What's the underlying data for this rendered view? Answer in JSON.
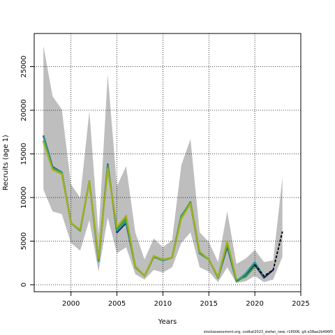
{
  "chart_data": {
    "type": "line",
    "title": "",
    "xlabel": "Years",
    "ylabel": "Recruits (age 1)",
    "xlim": [
      1996,
      2025
    ],
    "ylim": [
      -800,
      28800
    ],
    "x_ticks": [
      "2000",
      "2005",
      "2010",
      "2015",
      "2020",
      "2025"
    ],
    "y_ticks": [
      "0",
      "5000",
      "10000",
      "15000",
      "20000",
      "25000"
    ],
    "grid": true,
    "legend": "none",
    "footer_text": "stockassessment.org, codkat2023_stefan_new, r16006, git:e38ae2b496f0",
    "colors": {
      "band": "#bebebe",
      "series": [
        "#1a2a6c",
        "#2e9e8f",
        "#3aa040",
        "#a0b020",
        "#0a0a0a"
      ]
    },
    "x": [
      1997,
      1998,
      1999,
      2000,
      2001,
      2002,
      2003,
      2004,
      2005,
      2006,
      2007,
      2008,
      2009,
      2010,
      2011,
      2012,
      2013,
      2014,
      2015,
      2016,
      2017,
      2018,
      2019,
      2020,
      2021,
      2022,
      2023
    ],
    "band": {
      "upper": [
        27400,
        21600,
        20100,
        11500,
        10000,
        19900,
        5800,
        24100,
        11300,
        13600,
        6000,
        2900,
        5300,
        4300,
        5100,
        13700,
        16700,
        6000,
        4900,
        2600,
        8400,
        2400,
        3000,
        4000,
        2600,
        2800,
        12300
      ],
      "lower": [
        10900,
        8400,
        8100,
        4800,
        3900,
        7400,
        1500,
        7700,
        3600,
        4300,
        1200,
        600,
        1700,
        1400,
        2000,
        4800,
        6000,
        2000,
        1500,
        300,
        2000,
        200,
        400,
        1000,
        300,
        600,
        3200
      ]
    },
    "series": [
      {
        "values": [
          17100,
          13500,
          12900,
          7100,
          6200,
          11900,
          2700,
          13800,
          6000,
          7100,
          2100,
          1000,
          3200,
          2800,
          3100,
          7900,
          9300,
          3600,
          2900,
          800,
          4400,
          400,
          1000,
          2300,
          800,
          1700,
          null
        ]
      },
      {
        "values": [
          17000,
          13400,
          12900,
          7100,
          6200,
          11900,
          2700,
          13700,
          6200,
          7300,
          2100,
          1000,
          3200,
          2800,
          3100,
          7900,
          9400,
          3600,
          2900,
          800,
          4600,
          400,
          1300,
          2600,
          900,
          null,
          null
        ]
      },
      {
        "values": [
          16500,
          13300,
          12800,
          7100,
          6200,
          11900,
          2900,
          13500,
          6400,
          7600,
          2000,
          1000,
          3200,
          2900,
          3100,
          7800,
          9500,
          3700,
          2900,
          800,
          4800,
          500,
          900,
          2100,
          null,
          null,
          null
        ]
      },
      {
        "values": [
          16400,
          13200,
          12700,
          7100,
          6300,
          11900,
          3000,
          13300,
          6600,
          7900,
          2100,
          1000,
          3300,
          2900,
          3100,
          7600,
          9300,
          3800,
          2900,
          900,
          5000,
          600,
          null,
          null,
          null,
          null,
          null
        ]
      },
      {
        "values": [
          null,
          null,
          null,
          null,
          null,
          null,
          null,
          null,
          null,
          null,
          null,
          null,
          null,
          null,
          null,
          null,
          null,
          null,
          null,
          null,
          null,
          null,
          null,
          2300,
          1000,
          1700,
          6100
        ]
      }
    ]
  }
}
